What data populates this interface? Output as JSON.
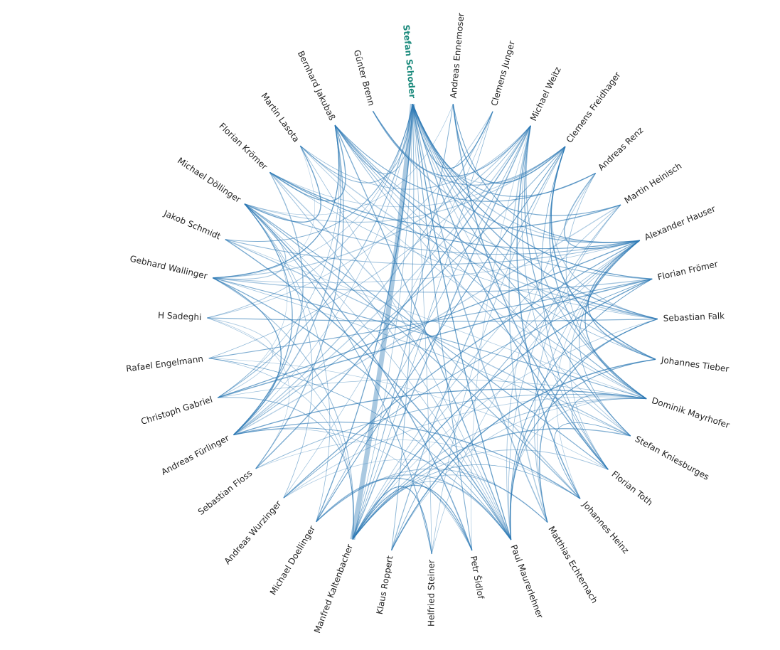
{
  "nodes": [
    "Stefan Schoder",
    "Andreas Ennemoser",
    "Clemens Junger",
    "Michael Weitz",
    "Clemens Freidhager",
    "Andreas Renz",
    "Martin Heinisch",
    "Alexander Hauser",
    "Florian Frömer",
    "Sebastian Falk",
    "Johannes Tieber",
    "Dominik Mayrhofer",
    "Stefan Kniesburges",
    "Florian Toth",
    "Johannes Heinz",
    "Matthias Echternach",
    "Paul Maurerlehner",
    "Petr Šidlof",
    "Helfried Steiner",
    "Klaus Roppert",
    "Manfred Kaltenbacher",
    "Michael Doellinger",
    "Andreas Wurzinger",
    "Sebastian Floss",
    "Andreas Fürlinger",
    "Christoph Gabriel",
    "Rafael Engelmann",
    "H Sadeghi",
    "Gebhard Wallinger",
    "Jakob Schmidt",
    "Michael Döllinger",
    "Florian Krömer",
    "Martin Lasota",
    "Bernhard Jakubaß",
    "Günter Brenn"
  ],
  "highlight": 0
}
